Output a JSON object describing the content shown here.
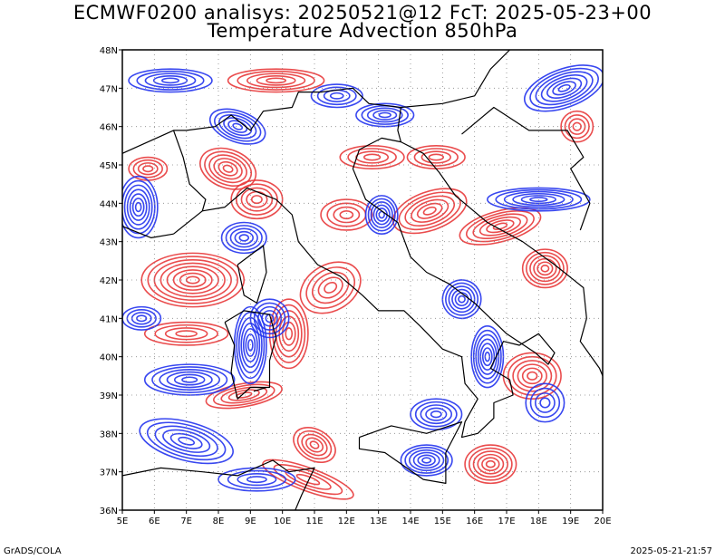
{
  "header": {
    "title_line1": "ECMWF0200 analisys: 20250521@12 FcT: 2025-05-23+00",
    "title_line2": "Temperature Advection 850hPa"
  },
  "footer": {
    "left": "GrADS/COLA",
    "right": "2025-05-21-21:57"
  },
  "map": {
    "projection": "lat-lon",
    "lon_range": [
      5,
      20
    ],
    "lat_range": [
      36,
      48
    ],
    "lon_ticks": [
      "5E",
      "6E",
      "7E",
      "8E",
      "9E",
      "10E",
      "11E",
      "12E",
      "13E",
      "14E",
      "15E",
      "16E",
      "17E",
      "18E",
      "19E",
      "20E"
    ],
    "lat_ticks": [
      "36N",
      "37N",
      "38N",
      "39N",
      "40N",
      "41N",
      "42N",
      "43N",
      "44N",
      "45N",
      "46N",
      "47N",
      "48N"
    ],
    "grid": "dotted",
    "colors": {
      "warm_advection": "#e8383a",
      "cold_advection": "#2233ee",
      "coastline": "#000000",
      "frame": "#000000"
    }
  }
}
